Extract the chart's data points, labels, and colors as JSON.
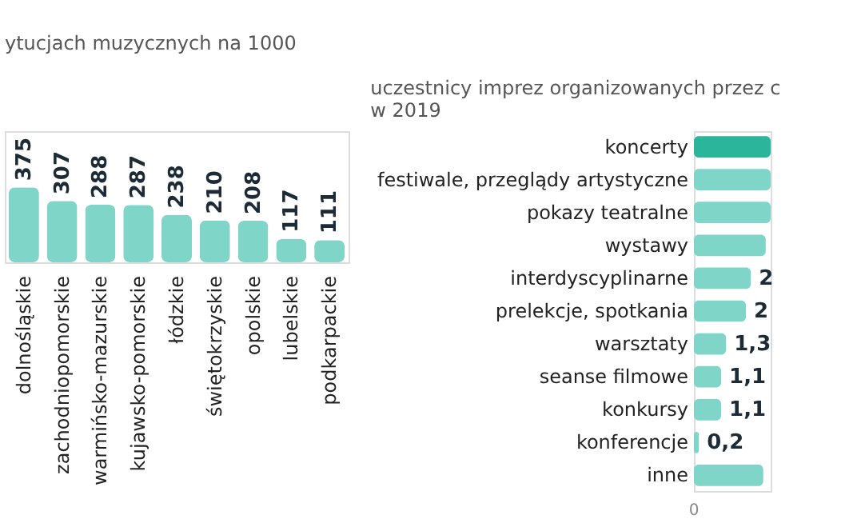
{
  "chart_data": [
    {
      "type": "bar",
      "title": "ytucjach muzycznych na 1000",
      "categories": [
        "dolnośląskie",
        "zachodniopomorskie",
        "warmińsko-mazurskie",
        "kujawsko-pomorskie",
        "łódzkie",
        "świętokrzyskie",
        "opolskie",
        "lubelskie",
        "podkarpackie"
      ],
      "values": [
        375,
        307,
        288,
        287,
        238,
        210,
        208,
        117,
        111
      ],
      "color": "#7fd6c8",
      "data_labels": true
    },
    {
      "type": "bar",
      "orientation": "horizontal",
      "title": "uczestnicy imprez organizowanych przez c\nw 2019",
      "categories": [
        "koncerty",
        "festiwale,  przeglądy artystyczne",
        "pokazy teatralne",
        "wystawy",
        "interdyscyplinarne",
        "prelekcje, spotkania",
        "warsztaty",
        "seanse filmowe",
        "konkursy",
        "konferencje",
        "inne"
      ],
      "values": [
        3.1,
        3.1,
        3.1,
        2.9,
        2.3,
        2.1,
        1.3,
        1.1,
        1.1,
        0.2,
        2.8
      ],
      "colors": [
        "#2bb59a",
        "#7fd6c8",
        "#7fd6c8",
        "#7fd6c8",
        "#7fd6c8",
        "#7fd6c8",
        "#7fd6c8",
        "#7fd6c8",
        "#7fd6c8",
        "#7fd6c8",
        "#7fd6c8"
      ],
      "value_labels": [
        null,
        null,
        null,
        null,
        "2",
        "2",
        "1,3",
        "1,1",
        "1,1",
        "0,2",
        null
      ],
      "annotations": [
        "0"
      ]
    }
  ]
}
